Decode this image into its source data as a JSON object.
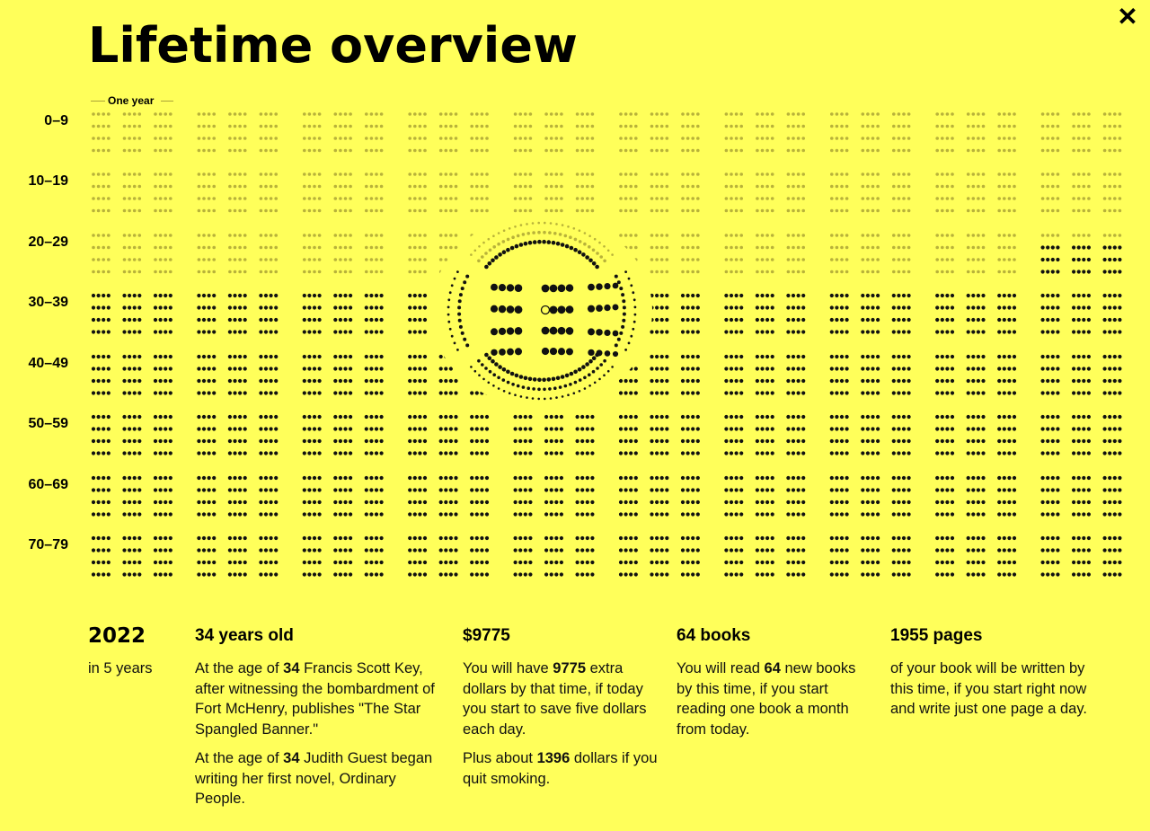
{
  "header": {
    "title": "Lifetime overview",
    "close_icon": "close-icon"
  },
  "legend": {
    "label": "One year"
  },
  "grid": {
    "row_labels": [
      "0–9",
      "10–19",
      "20–29",
      "30–39",
      "40–49",
      "50–59",
      "60–69",
      "70–79"
    ],
    "years_per_row": 10,
    "colors": {
      "past": "#b8b23a",
      "future": "#111111"
    }
  },
  "stats": {
    "year": {
      "value": "2022",
      "sub": "in 5 years"
    },
    "age": {
      "title": "34 years old",
      "p1": {
        "pre": "At the age of ",
        "num": "34",
        "post": " Francis Scott Key, after witnessing the bombardment of Fort McHenry, publishes \"The Star Spangled Banner.\""
      },
      "p2": {
        "pre": "At the age of ",
        "num": "34",
        "post": " Judith Guest began writing her first novel, Ordinary People."
      }
    },
    "savings": {
      "title": "$9775",
      "p1": {
        "pre": "You will have ",
        "num": "9775",
        "post": " extra dollars by that time, if today you start to save five dollars each day."
      },
      "p2": {
        "pre": "Plus about ",
        "num": "1396",
        "post": " dollars if you quit smoking."
      }
    },
    "books": {
      "title": "64 books",
      "p1": {
        "pre": "You will read ",
        "num": "64",
        "post": " new books by this time, if you start reading one book a month from today."
      }
    },
    "pages": {
      "title": "1955 pages",
      "p1": "of your book will be written by this time, if you start right now and write just one page a day."
    }
  }
}
